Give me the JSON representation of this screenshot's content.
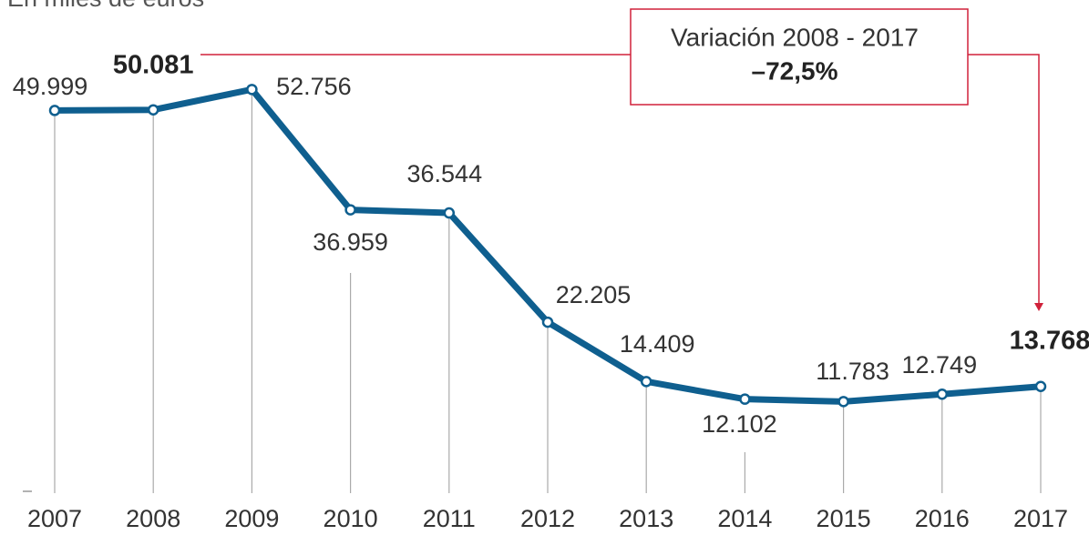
{
  "chart_data": {
    "type": "line",
    "subtitle": "En miles de euros",
    "categories": [
      "2007",
      "2008",
      "2009",
      "2010",
      "2011",
      "2012",
      "2013",
      "2014",
      "2015",
      "2016",
      "2017"
    ],
    "series": [
      {
        "name": null,
        "color": "#0f5f8f",
        "values": [
          49999,
          50081,
          52756,
          36959,
          36544,
          22205,
          14409,
          12102,
          11783,
          12749,
          13768
        ],
        "value_labels": [
          "49.999",
          "50.081",
          "52.756",
          "36.959",
          "36.544",
          "22.205",
          "14.409",
          "12.102",
          "11.783",
          "12.749",
          "13.768"
        ]
      }
    ],
    "ylim": [
      0,
      64500
    ],
    "annotation": {
      "title": "Variación 2008 - 2017",
      "text": "–72,5%"
    },
    "annotation_color": "#d0213a"
  }
}
